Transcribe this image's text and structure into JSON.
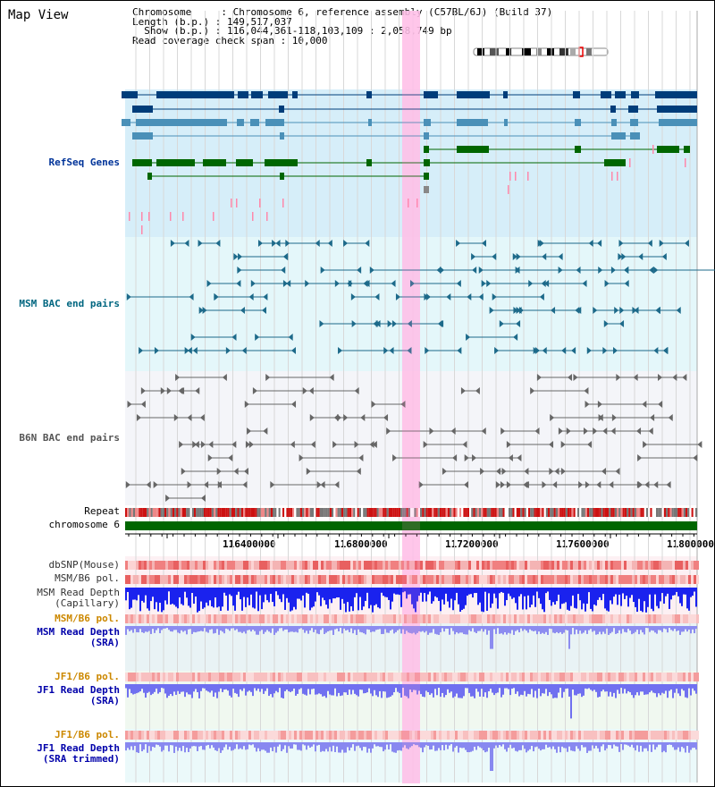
{
  "title": "Map View",
  "info": {
    "line1": "Chromosome     : Chromosome 6, reference assembly (C57BL/6J) (Build 37)",
    "line2": "Length (b.p.) : 149,517,037",
    "line3": "  Show (b.p.) : 116,044,361-118,103,109 : 2,058,749 bp",
    "line4": "Read coverage check span : 10,000"
  },
  "tracks": {
    "refseq": "RefSeq Genes",
    "msm_bac": "MSM BAC end pairs",
    "b6n_bac": "B6N BAC end pairs",
    "repeat": "Repeat",
    "chromosome": "chromosome 6",
    "dbsnp": "dbSNP(Mouse)",
    "msm_b6_pol_1": "MSM/B6 pol.",
    "msm_read_depth_cap_1": "MSM Read Depth",
    "msm_read_depth_cap_2": "(Capillary)",
    "msm_b6_pol_2": "MSM/B6 pol.",
    "msm_read_depth_sra_1": "MSM Read Depth",
    "msm_read_depth_sra_2": "(SRA)",
    "jf1_b6_pol_1": "JF1/B6 pol.",
    "jf1_read_depth_sra_1": "JF1 Read Depth",
    "jf1_read_depth_sra_2": "(SRA)",
    "jf1_b6_pol_2": "JF1/B6 pol.",
    "jf1_read_depth_trim_1": "JF1 Read Depth",
    "jf1_read_depth_trim_2": "(SRA trimmed)"
  },
  "axis": {
    "ticks": [
      "116400000",
      "116800000",
      "117200000",
      "117600000",
      "118000000"
    ]
  },
  "colors": {
    "refseq_label": "#003399",
    "msm_label": "#006680",
    "b6n_label": "#555555",
    "orange_label": "#cc8800",
    "blue_label": "#0000aa",
    "highlight": "#ffccee"
  }
}
